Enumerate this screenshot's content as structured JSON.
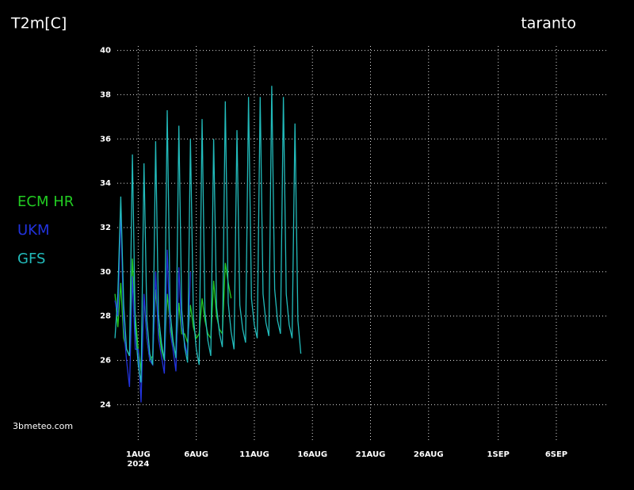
{
  "chart_data": {
    "type": "line",
    "title": "T2m[C]",
    "location": "taranto",
    "source": "3bmeteo.com",
    "x_year": "2024",
    "x": [
      -1,
      -0.75,
      -0.5,
      -0.25,
      0,
      0.25,
      0.5,
      0.75,
      1,
      1.25,
      1.5,
      1.75,
      2,
      2.25,
      2.5,
      2.75,
      3,
      3.25,
      3.5,
      3.75,
      4,
      4.25,
      4.5,
      4.75,
      5,
      5.25,
      5.5,
      5.75,
      6,
      6.25,
      6.5,
      6.75,
      7,
      7.25,
      7.5,
      7.75,
      8,
      8.25,
      8.5,
      8.75,
      9,
      9.25,
      9.5,
      9.75,
      10,
      10.25,
      10.5,
      10.75,
      11,
      11.25,
      11.5,
      11.75,
      12,
      12.25,
      12.5,
      12.75,
      13,
      13.25,
      13.5,
      13.75,
      14,
      14.25,
      14.5,
      14.75,
      15
    ],
    "series": [
      {
        "name": "ECM  HR",
        "color": "#22cc22",
        "values": [
          29.0,
          27.5,
          29.5,
          27.0,
          26.5,
          26.2,
          30.6,
          28.0,
          26.5,
          25.5,
          28.8,
          27.0,
          26.0,
          26.2,
          29.2,
          27.5,
          26.5,
          26.0,
          29.0,
          27.6,
          26.8,
          26.2,
          28.6,
          27.2,
          27.2,
          26.8,
          28.5,
          27.5,
          27.0,
          27.2,
          28.8,
          27.8,
          27.2,
          27.0,
          29.6,
          28.0,
          27.4,
          27.2,
          30.4,
          29.5,
          28.8,
          null,
          null,
          null,
          null,
          null,
          null,
          null,
          null,
          null,
          null,
          null,
          null,
          null,
          null,
          null,
          null,
          null,
          null,
          null,
          null,
          null,
          null,
          null,
          null
        ]
      },
      {
        "name": "UKM",
        "color": "#2233dd",
        "values": [
          28.7,
          28.0,
          32.8,
          27.5,
          26.0,
          24.8,
          29.8,
          26.5,
          26.5,
          24.1,
          29.0,
          27.0,
          26.0,
          25.8,
          30.0,
          27.0,
          26.2,
          25.4,
          31.0,
          27.3,
          26.5,
          25.5,
          30.2,
          27.5,
          26.8,
          26.2,
          30.0,
          null,
          null,
          null,
          null,
          null,
          null,
          null,
          null,
          null,
          null,
          null,
          null,
          null,
          null,
          null,
          null,
          null,
          null,
          null,
          null,
          null,
          null,
          null,
          null,
          null,
          null,
          null,
          null,
          null,
          null,
          null,
          null,
          null,
          null,
          null,
          null,
          null,
          null
        ]
      },
      {
        "name": "GFS",
        "color": "#22bbbb",
        "values": [
          27.0,
          29.0,
          33.4,
          28.5,
          26.5,
          26.2,
          35.3,
          27.5,
          25.8,
          25.0,
          34.9,
          27.8,
          26.3,
          25.8,
          35.9,
          28.0,
          26.8,
          26.0,
          37.3,
          28.2,
          26.9,
          26.1,
          36.6,
          28.3,
          26.6,
          25.9,
          36.0,
          28.0,
          26.5,
          25.8,
          36.9,
          28.2,
          26.9,
          26.2,
          36.0,
          28.4,
          27.2,
          26.6,
          37.7,
          28.6,
          27.3,
          26.5,
          36.4,
          28.5,
          27.4,
          26.8,
          37.9,
          28.8,
          27.6,
          27.0,
          37.9,
          29.0,
          27.7,
          27.1,
          38.4,
          29.2,
          27.8,
          27.2,
          37.9,
          29.0,
          27.6,
          27.0,
          36.7,
          27.8,
          26.3
        ]
      }
    ],
    "xlim": [
      -0.8,
      41.3
    ],
    "xticks": [
      {
        "value": 1,
        "label": "1AUG"
      },
      {
        "value": 6,
        "label": "6AUG"
      },
      {
        "value": 11,
        "label": "11AUG"
      },
      {
        "value": 16,
        "label": "16AUG"
      },
      {
        "value": 21,
        "label": "21AUG"
      },
      {
        "value": 26,
        "label": "26AUG"
      },
      {
        "value": 32,
        "label": "1SEP"
      },
      {
        "value": 37,
        "label": "6SEP"
      }
    ],
    "ylim": [
      22.4,
      40.2
    ],
    "yticks": [
      24,
      26,
      28,
      30,
      32,
      34,
      36,
      38,
      40
    ],
    "grid": true
  }
}
